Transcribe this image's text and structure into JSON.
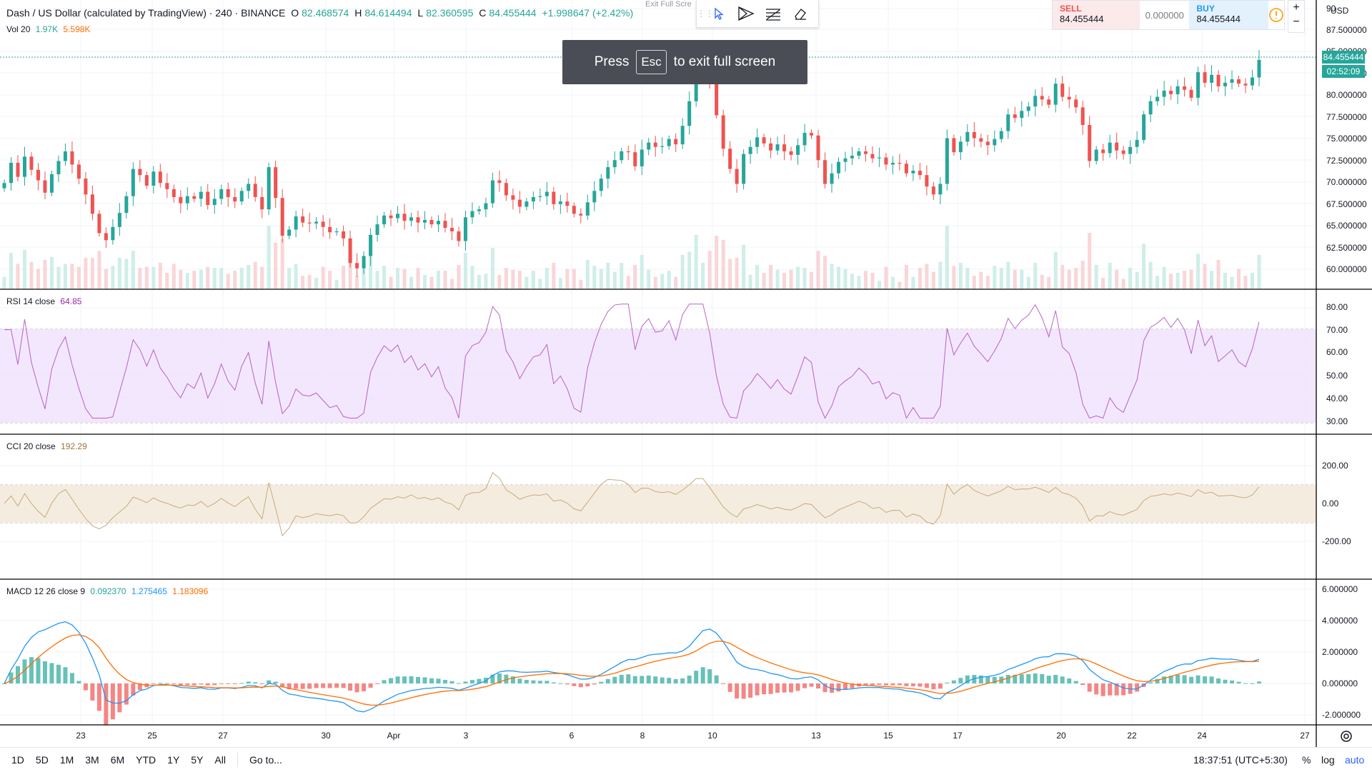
{
  "header": {
    "symbol_title": "Dash / US Dollar (calculated by TradingView) · 240 · BINANCE",
    "open_label": "O",
    "open": "82.468574",
    "high_label": "H",
    "high": "84.614494",
    "low_label": "L",
    "low": "82.360595",
    "close_label": "C",
    "close": "84.455444",
    "change": "+1.998647 (+2.42%)",
    "vol_label": "Vol 20",
    "vol_val1": "1.97K",
    "vol_val2": "5.598K"
  },
  "toast": {
    "press": "Press",
    "key": "Esc",
    "rest": "to exit full screen"
  },
  "toolbar": {
    "exit_label": "Exit Full Scre"
  },
  "trade": {
    "sell_label": "SELL",
    "sell_price": "84.455444",
    "spread": "0.000000",
    "buy_label": "BUY",
    "buy_price": "84.455444"
  },
  "scale": {
    "currency": "USD",
    "price_badge": "84.455444",
    "countdown": "02:52:09",
    "price_ticks": [
      "90",
      "87.500000",
      "85.000000",
      "82.500000",
      "80.000000",
      "77.500000",
      "75.000000",
      "72.500000",
      "70.000000",
      "67.500000",
      "65.000000",
      "62.500000",
      "60.000000"
    ],
    "rsi_ticks": [
      "80.00",
      "70.00",
      "60.00",
      "50.00",
      "40.00",
      "30.00"
    ],
    "cci_ticks": [
      "200.00",
      "0.00",
      "-200.00"
    ],
    "macd_ticks": [
      "6.000000",
      "4.000000",
      "2.000000",
      "0.000000",
      "-2.000000"
    ]
  },
  "rsi_legend": {
    "label": "RSI 14 close",
    "value": "64.85"
  },
  "cci_legend": {
    "label": "CCI 20 close",
    "value": "192.29"
  },
  "macd_legend": {
    "label": "MACD 12 26 close 9",
    "v1": "0.092370",
    "v2": "1.275465",
    "v3": "1.183096"
  },
  "time_axis": [
    "23",
    "25",
    "27",
    "30",
    "Apr",
    "3",
    "6",
    "8",
    "10",
    "13",
    "15",
    "17",
    "20",
    "22",
    "24",
    "27"
  ],
  "bottom_bar": {
    "timeframes": [
      "1D",
      "5D",
      "1M",
      "3M",
      "6M",
      "YTD",
      "1Y",
      "5Y",
      "All"
    ],
    "goto": "Go to...",
    "clock": "18:37:51 (UTC+5:30)",
    "percent": "%",
    "log": "log",
    "auto": "auto"
  },
  "colors": {
    "up": "#26a69a",
    "down": "#ef5350",
    "rsi": "#9c27b0",
    "cci": "#c8a97e",
    "macd": "#2196f3",
    "signal": "#ff6d00"
  },
  "chart_data": {
    "type": "candlestick",
    "price_range": [
      58.5,
      90.5
    ],
    "closes": [
      70.5,
      72.8,
      71.2,
      73.5,
      72.0,
      70.8,
      69.4,
      71.5,
      73.0,
      74.1,
      72.6,
      71.0,
      69.2,
      67.0,
      64.8,
      64.0,
      65.5,
      67.1,
      69.0,
      72.1,
      71.4,
      70.2,
      71.8,
      70.5,
      69.8,
      68.9,
      68.2,
      69.0,
      68.7,
      69.5,
      68.0,
      68.7,
      69.8,
      68.9,
      68.4,
      69.6,
      70.4,
      68.9,
      67.5,
      72.3,
      68.8,
      64.5,
      65.2,
      66.7,
      66.0,
      65.9,
      66.1,
      65.5,
      64.9,
      65.0,
      64.2,
      61.4,
      60.8,
      62.2,
      64.6,
      65.8,
      66.8,
      66.5,
      67.0,
      66.2,
      66.6,
      66.0,
      66.3,
      65.8,
      66.2,
      65.4,
      65.0,
      63.9,
      66.6,
      67.3,
      67.5,
      68.2,
      70.8,
      70.5,
      69.1,
      68.6,
      67.8,
      68.4,
      68.9,
      69.0,
      69.5,
      68.1,
      68.4,
      67.9,
      67.0,
      66.8,
      68.3,
      69.6,
      71.0,
      72.3,
      73.1,
      74.1,
      74.0,
      72.4,
      74.3,
      75.1,
      74.6,
      74.7,
      75.5,
      74.9,
      77.0,
      79.8,
      83.6,
      85.0,
      82.0,
      78.2,
      74.4,
      72.1,
      70.4,
      73.8,
      74.6,
      75.7,
      75.0,
      74.2,
      74.9,
      74.1,
      73.7,
      74.8,
      76.2,
      75.9,
      73.1,
      70.4,
      71.6,
      72.9,
      73.3,
      73.6,
      74.1,
      73.8,
      73.3,
      73.4,
      72.6,
      72.8,
      72.7,
      71.6,
      71.9,
      71.4,
      70.1,
      69.2,
      70.4,
      75.6,
      74.0,
      75.2,
      76.3,
      75.6,
      75.2,
      74.8,
      75.5,
      76.4,
      78.3,
      77.9,
      78.7,
      79.2,
      80.4,
      80.0,
      79.4,
      81.8,
      80.3,
      80.0,
      79.1,
      77.1,
      73.0,
      74.3,
      73.9,
      75.1,
      74.2,
      73.8,
      74.6,
      75.4,
      78.3,
      79.8,
      80.3,
      81.0,
      80.6,
      81.5,
      81.1,
      80.2,
      83.1,
      81.9,
      82.8,
      81.5,
      81.9,
      82.3,
      81.8,
      81.6,
      82.5,
      84.5
    ]
  }
}
